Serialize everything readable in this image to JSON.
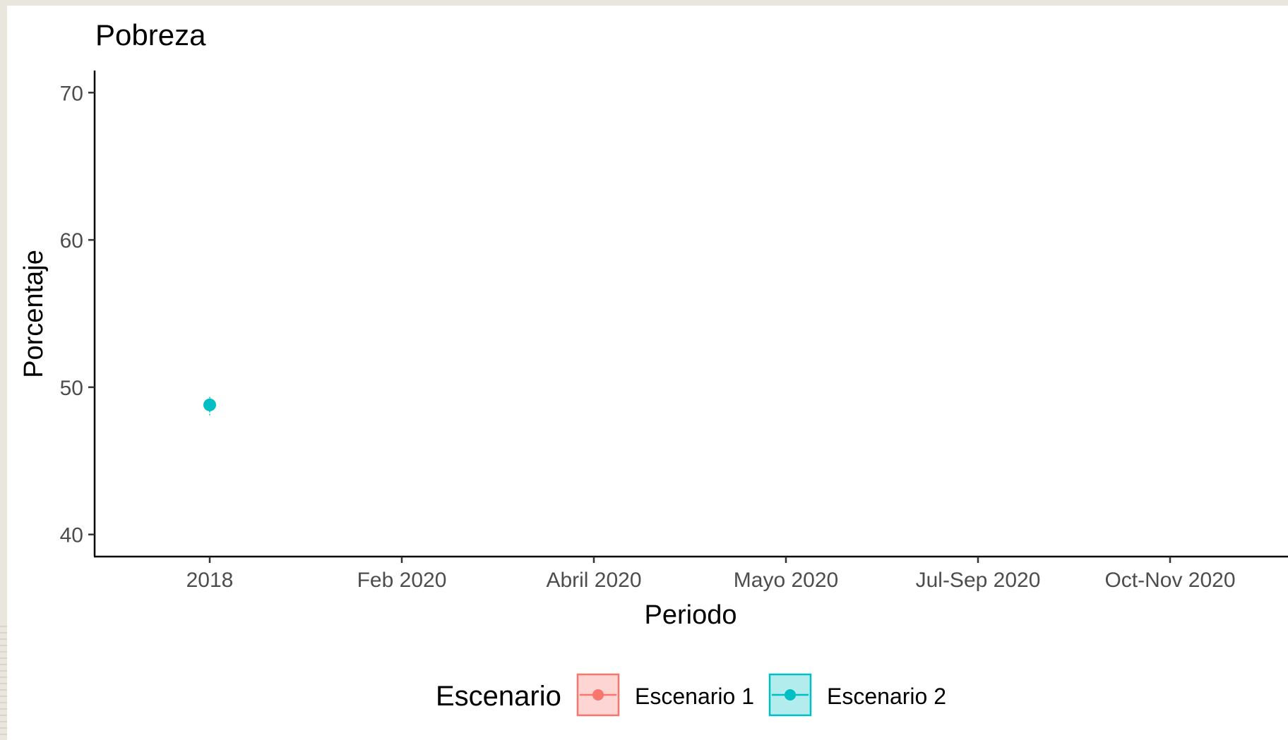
{
  "chart_data": {
    "type": "line",
    "title": "Pobreza",
    "xlabel": "Periodo",
    "ylabel": "Porcentaje",
    "categories": [
      "2018",
      "Feb 2020",
      "Abril 2020",
      "Mayo 2020",
      "Jul-Sep 2020",
      "Oct-Nov 2020"
    ],
    "yticks": [
      40,
      50,
      60,
      70
    ],
    "ylim": [
      38.5,
      71.5
    ],
    "grid": false,
    "legend": {
      "title": "Escenario",
      "position": "bottom",
      "entries": [
        "Escenario 1",
        "Escenario 2"
      ]
    },
    "series": [
      {
        "name": "Escenario 1",
        "color": "#f8766d",
        "points": []
      },
      {
        "name": "Escenario 2",
        "color": "#00bfc4",
        "points": [
          {
            "x": "2018",
            "y": 48.8,
            "low": 48.1,
            "high": 49.4
          }
        ]
      }
    ]
  }
}
